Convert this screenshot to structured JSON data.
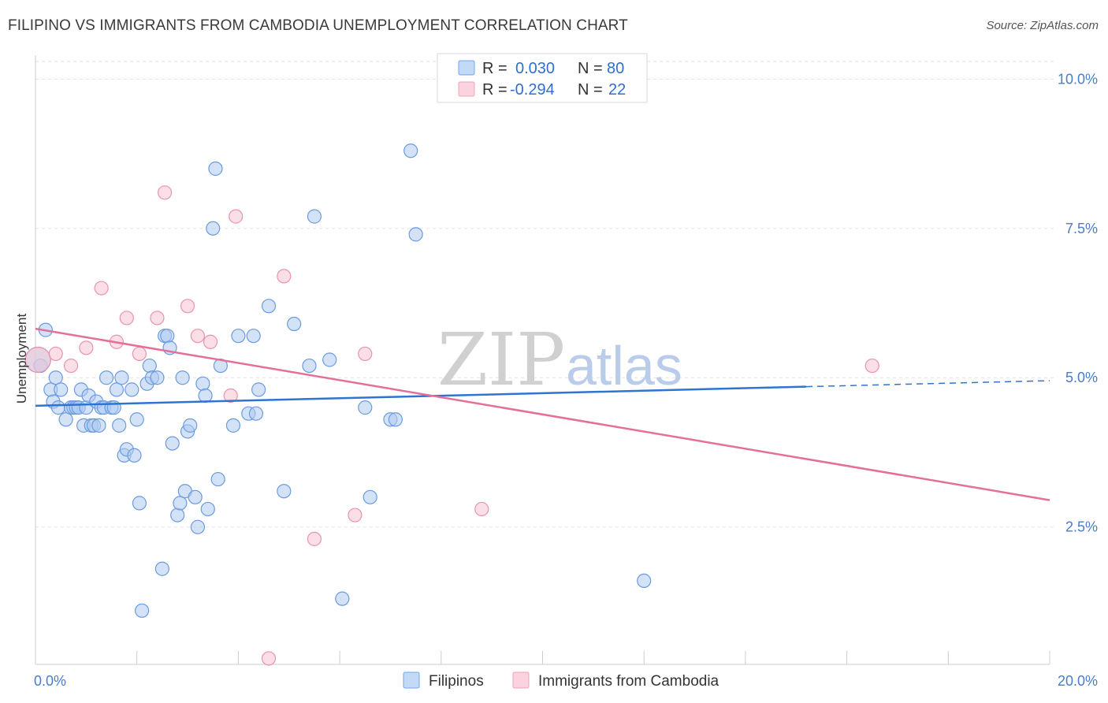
{
  "header": {
    "title": "FILIPINO VS IMMIGRANTS FROM CAMBODIA UNEMPLOYMENT CORRELATION CHART",
    "source": "Source: ZipAtlas.com"
  },
  "watermark": {
    "zip": "ZIP",
    "atlas": "atlas"
  },
  "legend": {
    "r_label": "R =",
    "n_label": "N =",
    "rows": [
      {
        "r": "0.030",
        "n": "80",
        "color": "#6fa8ec"
      },
      {
        "r": "-0.294",
        "n": "22",
        "color": "#f2a0b8"
      }
    ]
  },
  "colors": {
    "blue_fill": "#aecbf0",
    "blue_stroke": "#6a9be0",
    "blue_line": "#2f74d0",
    "pink_fill": "#f8c4d2",
    "pink_stroke": "#ea93ad",
    "pink_line": "#e4709a",
    "grid": "#e3e3e3"
  },
  "chart_data": {
    "type": "scatter",
    "title": "FILIPINO VS IMMIGRANTS FROM CAMBODIA UNEMPLOYMENT CORRELATION CHART",
    "xlabel": "",
    "ylabel": "Unemployment",
    "xlim": [
      0,
      20
    ],
    "ylim": [
      0.2,
      10.4
    ],
    "x_tick_labels": [
      "0.0%",
      "20.0%"
    ],
    "y_ticks": [
      2.5,
      5.0,
      7.5,
      10.0
    ],
    "y_tick_labels": [
      "2.5%",
      "5.0%",
      "7.5%",
      "10.0%"
    ],
    "legend_position": "top-center",
    "grid": true,
    "series": [
      {
        "name": "Filipinos",
        "points": [
          [
            0.1,
            5.2
          ],
          [
            0.2,
            5.8
          ],
          [
            0.3,
            4.8
          ],
          [
            0.35,
            4.6
          ],
          [
            0.4,
            5.0
          ],
          [
            0.45,
            4.5
          ],
          [
            0.5,
            4.8
          ],
          [
            0.6,
            4.3
          ],
          [
            0.7,
            4.5
          ],
          [
            0.75,
            4.5
          ],
          [
            0.8,
            4.5
          ],
          [
            0.85,
            4.5
          ],
          [
            0.9,
            4.8
          ],
          [
            0.95,
            4.2
          ],
          [
            1.0,
            4.5
          ],
          [
            1.05,
            4.7
          ],
          [
            1.1,
            4.2
          ],
          [
            1.15,
            4.2
          ],
          [
            1.2,
            4.6
          ],
          [
            1.25,
            4.2
          ],
          [
            1.3,
            4.5
          ],
          [
            1.35,
            4.5
          ],
          [
            1.4,
            5.0
          ],
          [
            1.5,
            4.5
          ],
          [
            1.55,
            4.5
          ],
          [
            1.6,
            4.8
          ],
          [
            1.65,
            4.2
          ],
          [
            1.7,
            5.0
          ],
          [
            1.75,
            3.7
          ],
          [
            1.8,
            3.8
          ],
          [
            1.9,
            4.8
          ],
          [
            1.95,
            3.7
          ],
          [
            2.0,
            4.3
          ],
          [
            2.05,
            2.9
          ],
          [
            2.1,
            1.1
          ],
          [
            2.2,
            4.9
          ],
          [
            2.25,
            5.2
          ],
          [
            2.3,
            5.0
          ],
          [
            2.4,
            5.0
          ],
          [
            2.5,
            1.8
          ],
          [
            2.55,
            5.7
          ],
          [
            2.6,
            5.7
          ],
          [
            2.65,
            5.5
          ],
          [
            2.7,
            3.9
          ],
          [
            2.8,
            2.7
          ],
          [
            2.85,
            2.9
          ],
          [
            2.9,
            5.0
          ],
          [
            2.95,
            3.1
          ],
          [
            3.0,
            4.1
          ],
          [
            3.05,
            4.2
          ],
          [
            3.15,
            3.0
          ],
          [
            3.2,
            2.5
          ],
          [
            3.3,
            4.9
          ],
          [
            3.35,
            4.7
          ],
          [
            3.4,
            2.8
          ],
          [
            3.5,
            7.5
          ],
          [
            3.55,
            8.5
          ],
          [
            3.6,
            3.3
          ],
          [
            3.65,
            5.2
          ],
          [
            3.9,
            4.2
          ],
          [
            4.0,
            5.7
          ],
          [
            4.2,
            4.4
          ],
          [
            4.3,
            5.7
          ],
          [
            4.35,
            4.4
          ],
          [
            4.4,
            4.8
          ],
          [
            4.6,
            6.2
          ],
          [
            4.9,
            3.1
          ],
          [
            5.1,
            5.9
          ],
          [
            5.4,
            5.2
          ],
          [
            5.5,
            7.7
          ],
          [
            5.8,
            5.3
          ],
          [
            6.05,
            1.3
          ],
          [
            6.5,
            4.5
          ],
          [
            6.6,
            3.0
          ],
          [
            7.0,
            4.3
          ],
          [
            7.1,
            4.3
          ],
          [
            7.4,
            8.8
          ],
          [
            7.5,
            7.4
          ],
          [
            12.0,
            1.6
          ],
          [
            0.05,
            5.3
          ]
        ]
      },
      {
        "name": "Immigrants from Cambodia",
        "points": [
          [
            0.05,
            5.3
          ],
          [
            0.4,
            5.4
          ],
          [
            0.7,
            5.2
          ],
          [
            1.0,
            5.5
          ],
          [
            1.3,
            6.5
          ],
          [
            1.6,
            5.6
          ],
          [
            1.8,
            6.0
          ],
          [
            2.05,
            5.4
          ],
          [
            2.4,
            6.0
          ],
          [
            2.55,
            8.1
          ],
          [
            3.0,
            6.2
          ],
          [
            3.2,
            5.7
          ],
          [
            3.45,
            5.6
          ],
          [
            3.85,
            4.7
          ],
          [
            3.95,
            7.7
          ],
          [
            4.6,
            0.3
          ],
          [
            4.9,
            6.7
          ],
          [
            5.5,
            2.3
          ],
          [
            6.3,
            2.7
          ],
          [
            6.5,
            5.4
          ],
          [
            8.8,
            2.8
          ],
          [
            16.5,
            5.2
          ]
        ]
      }
    ],
    "trend_lines": [
      {
        "series": "Filipinos",
        "x": [
          0,
          15.2
        ],
        "y": [
          4.53,
          4.85
        ],
        "dashed_extension_x": [
          15.2,
          20
        ],
        "dashed_extension_y": [
          4.85,
          4.95
        ]
      },
      {
        "series": "Immigrants from Cambodia",
        "x": [
          0,
          20
        ],
        "y": [
          5.82,
          2.95
        ]
      }
    ]
  },
  "bottom_legend": {
    "items": [
      {
        "label": "Filipinos"
      },
      {
        "label": "Immigrants from Cambodia"
      }
    ]
  }
}
